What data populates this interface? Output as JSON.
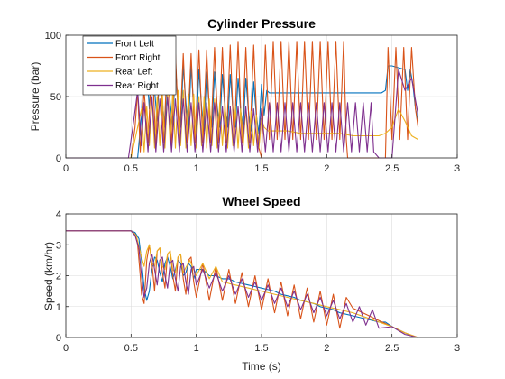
{
  "chart_data": [
    {
      "type": "line",
      "title": "Cylinder Pressure",
      "xlabel": "",
      "ylabel": "Pressure (bar)",
      "xlim": [
        0,
        3
      ],
      "ylim": [
        0,
        100
      ],
      "xticks": [
        "0",
        "0.5",
        "1",
        "1.5",
        "2",
        "2.5",
        "3"
      ],
      "yticks": [
        "0",
        "50",
        "100"
      ],
      "grid": true,
      "legend_position": "top-left",
      "series": [
        {
          "name": "Front Left",
          "color": "#0072BD",
          "x": [
            0,
            0.55,
            0.58,
            0.6,
            0.62,
            0.64,
            0.66,
            0.68,
            0.7,
            0.72,
            0.74,
            0.76,
            0.78,
            0.8,
            0.82,
            0.84,
            0.86,
            0.88,
            0.9,
            0.92,
            0.94,
            0.96,
            0.98,
            1.0,
            1.02,
            1.04,
            1.06,
            1.08,
            1.1,
            1.12,
            1.14,
            1.16,
            1.18,
            1.2,
            1.22,
            1.24,
            1.26,
            1.28,
            1.3,
            1.32,
            1.34,
            1.36,
            1.38,
            1.4,
            1.42,
            1.44,
            1.46,
            1.48,
            1.5,
            1.52,
            1.54,
            1.56,
            1.58,
            1.6,
            2.4,
            2.42,
            2.45,
            2.47,
            2.5,
            2.6,
            2.62,
            2.64,
            2.66,
            2.68,
            2.7
          ],
          "y": [
            0,
            0,
            35,
            98,
            72,
            40,
            80,
            55,
            30,
            75,
            45,
            25,
            80,
            45,
            25,
            78,
            40,
            25,
            75,
            45,
            22,
            75,
            40,
            20,
            72,
            42,
            22,
            70,
            40,
            25,
            70,
            42,
            25,
            68,
            40,
            25,
            68,
            40,
            25,
            65,
            38,
            25,
            65,
            38,
            22,
            62,
            35,
            20,
            60,
            35,
            55,
            53,
            53,
            53,
            53,
            53,
            55,
            75,
            75,
            72,
            55,
            72,
            60,
            40,
            30
          ]
        },
        {
          "name": "Front Right",
          "color": "#D95319",
          "x": [
            0,
            0.5,
            0.53,
            0.55,
            0.57,
            0.6,
            0.63,
            0.66,
            0.69,
            0.72,
            0.75,
            0.78,
            0.81,
            0.84,
            0.87,
            0.9,
            0.93,
            0.96,
            0.99,
            1.02,
            1.05,
            1.08,
            1.11,
            1.14,
            1.17,
            1.2,
            1.23,
            1.26,
            1.29,
            1.32,
            1.35,
            1.38,
            1.41,
            1.44,
            1.47,
            1.5,
            1.53,
            1.56,
            1.59,
            1.62,
            1.65,
            1.68,
            1.71,
            1.74,
            1.77,
            1.8,
            1.83,
            1.86,
            1.89,
            1.92,
            1.95,
            1.98,
            2.01,
            2.04,
            2.07,
            2.1,
            2.13,
            2.15,
            2.16,
            2.45,
            2.47,
            2.5,
            2.53,
            2.56,
            2.59,
            2.62,
            2.65,
            2.68,
            2.7
          ],
          "y": [
            0,
            0,
            25,
            55,
            5,
            55,
            12,
            82,
            10,
            82,
            12,
            85,
            10,
            85,
            12,
            85,
            12,
            85,
            12,
            88,
            12,
            88,
            12,
            90,
            12,
            90,
            12,
            92,
            12,
            95,
            12,
            90,
            12,
            92,
            12,
            0,
            92,
            15,
            95,
            15,
            95,
            15,
            95,
            15,
            95,
            15,
            95,
            15,
            95,
            15,
            95,
            15,
            95,
            15,
            95,
            15,
            95,
            15,
            0,
            0,
            90,
            15,
            90,
            15,
            90,
            15,
            90,
            40,
            25
          ]
        },
        {
          "name": "Rear Left",
          "color": "#EDB120",
          "x": [
            0,
            0.5,
            0.55,
            0.58,
            0.6,
            0.62,
            0.64,
            0.66,
            0.68,
            0.7,
            0.72,
            0.74,
            0.76,
            0.78,
            0.8,
            0.82,
            0.84,
            0.86,
            0.88,
            0.9,
            0.92,
            0.94,
            0.96,
            0.98,
            1.0,
            1.02,
            1.04,
            1.06,
            1.08,
            1.1,
            1.12,
            1.14,
            1.16,
            1.18,
            1.2,
            1.22,
            1.24,
            1.26,
            1.28,
            1.3,
            1.32,
            1.34,
            1.36,
            1.38,
            1.4,
            1.42,
            1.44,
            1.46,
            1.48,
            1.5,
            1.52,
            1.55,
            1.6,
            1.7,
            1.8,
            1.9,
            2.0,
            2.1,
            2.2,
            2.3,
            2.4,
            2.45,
            2.5,
            2.55,
            2.6,
            2.65,
            2.7
          ],
          "y": [
            0,
            0,
            25,
            40,
            5,
            42,
            10,
            48,
            8,
            50,
            10,
            52,
            8,
            55,
            10,
            55,
            8,
            55,
            10,
            55,
            8,
            52,
            10,
            52,
            8,
            50,
            10,
            50,
            8,
            48,
            10,
            48,
            8,
            45,
            10,
            45,
            8,
            42,
            10,
            42,
            8,
            40,
            10,
            40,
            8,
            38,
            10,
            35,
            8,
            32,
            25,
            22,
            22,
            22,
            20,
            20,
            20,
            20,
            18,
            18,
            18,
            20,
            25,
            40,
            30,
            18,
            15
          ]
        },
        {
          "name": "Rear Right",
          "color": "#7E2F8E",
          "x": [
            0,
            0.48,
            0.52,
            0.55,
            0.58,
            0.6,
            0.63,
            0.66,
            0.69,
            0.72,
            0.75,
            0.78,
            0.81,
            0.84,
            0.87,
            0.9,
            0.93,
            0.96,
            0.99,
            1.02,
            1.05,
            1.08,
            1.11,
            1.14,
            1.17,
            1.2,
            1.23,
            1.26,
            1.29,
            1.32,
            1.35,
            1.38,
            1.41,
            1.44,
            1.47,
            1.5,
            1.53,
            1.56,
            1.59,
            1.62,
            1.65,
            1.68,
            1.71,
            1.74,
            1.77,
            1.8,
            1.83,
            1.86,
            1.89,
            1.92,
            1.95,
            1.98,
            2.01,
            2.04,
            2.07,
            2.1,
            2.13,
            2.16,
            2.19,
            2.22,
            2.25,
            2.28,
            2.31,
            2.34,
            2.36,
            2.4,
            2.45,
            2.5,
            2.55,
            2.6,
            2.65,
            2.7
          ],
          "y": [
            0,
            0,
            30,
            55,
            10,
            45,
            5,
            50,
            5,
            48,
            5,
            50,
            5,
            48,
            5,
            48,
            5,
            45,
            5,
            45,
            5,
            45,
            5,
            45,
            5,
            42,
            5,
            42,
            5,
            42,
            5,
            42,
            5,
            40,
            5,
            40,
            5,
            45,
            5,
            45,
            5,
            45,
            5,
            45,
            5,
            45,
            5,
            45,
            5,
            45,
            5,
            45,
            5,
            45,
            5,
            45,
            5,
            45,
            5,
            45,
            5,
            45,
            5,
            45,
            5,
            0,
            0,
            0,
            72,
            55,
            65,
            35
          ]
        }
      ]
    },
    {
      "type": "line",
      "title": "Wheel Speed",
      "xlabel": "Time (s)",
      "ylabel": "Speed (km/hr)",
      "xlim": [
        0,
        3
      ],
      "ylim": [
        0,
        4
      ],
      "xticks": [
        "0",
        "0.5",
        "1",
        "1.5",
        "2",
        "2.5",
        "3"
      ],
      "yticks": [
        "0",
        "1",
        "2",
        "3",
        "4"
      ],
      "grid": true,
      "series": [
        {
          "name": "Front Left",
          "color": "#0072BD",
          "x": [
            0,
            0.5,
            0.53,
            0.56,
            0.58,
            0.6,
            0.62,
            0.64,
            0.66,
            0.68,
            0.7,
            0.72,
            0.74,
            0.76,
            0.78,
            0.8,
            0.82,
            0.84,
            0.86,
            0.88,
            0.9,
            0.92,
            0.94,
            0.96,
            0.98,
            1.0,
            1.05,
            1.1,
            1.15,
            1.2,
            1.25,
            1.3,
            1.35,
            1.4,
            1.45,
            1.5,
            1.55,
            1.6,
            1.65,
            1.7,
            1.75,
            1.8,
            1.85,
            1.9,
            1.95,
            2.0,
            2.05,
            2.1,
            2.2,
            2.3,
            2.4,
            2.45,
            2.5,
            2.55,
            2.6,
            2.65,
            2.7
          ],
          "y": [
            3.45,
            3.45,
            3.4,
            3.2,
            2.5,
            1.6,
            1.2,
            1.5,
            2.2,
            2.6,
            2.5,
            2.1,
            1.8,
            2.4,
            2.6,
            2.3,
            1.9,
            2.2,
            2.5,
            2.4,
            2.0,
            2.1,
            2.4,
            2.3,
            1.9,
            2.2,
            2.2,
            2.0,
            2.0,
            1.9,
            1.9,
            1.8,
            1.75,
            1.7,
            1.65,
            1.6,
            1.55,
            1.5,
            1.4,
            1.35,
            1.3,
            1.2,
            1.15,
            1.1,
            1.0,
            0.95,
            0.9,
            0.8,
            0.7,
            0.6,
            0.5,
            0.5,
            0.35,
            0.25,
            0.15,
            0.05,
            0
          ]
        },
        {
          "name": "Front Right",
          "color": "#D95319",
          "x": [
            0,
            0.5,
            0.53,
            0.55,
            0.57,
            0.58,
            0.6,
            0.62,
            0.64,
            0.66,
            0.68,
            0.7,
            0.72,
            0.74,
            0.76,
            0.78,
            0.8,
            0.82,
            0.84,
            0.86,
            0.88,
            0.9,
            0.92,
            0.94,
            0.96,
            0.98,
            1.0,
            1.05,
            1.1,
            1.15,
            1.2,
            1.25,
            1.3,
            1.35,
            1.4,
            1.45,
            1.5,
            1.55,
            1.6,
            1.65,
            1.7,
            1.75,
            1.8,
            1.85,
            1.9,
            1.95,
            2.0,
            2.05,
            2.1,
            2.15,
            2.2,
            2.3,
            2.4,
            2.5,
            2.6,
            2.7
          ],
          "y": [
            3.45,
            3.45,
            3.35,
            3.0,
            2.0,
            1.4,
            1.1,
            2.5,
            3.0,
            2.4,
            1.5,
            2.8,
            2.9,
            2.1,
            1.6,
            2.7,
            2.8,
            2.0,
            1.5,
            2.6,
            2.7,
            1.9,
            1.4,
            2.5,
            2.6,
            1.8,
            1.3,
            2.4,
            1.2,
            2.3,
            1.2,
            2.2,
            1.1,
            2.1,
            1.0,
            2.0,
            0.9,
            1.9,
            0.8,
            1.8,
            0.7,
            1.7,
            0.6,
            1.6,
            0.5,
            1.5,
            0.4,
            1.4,
            0.3,
            1.3,
            0.95,
            0.75,
            0.55,
            0.35,
            0.15,
            0
          ]
        },
        {
          "name": "Rear Left",
          "color": "#EDB120",
          "x": [
            0,
            0.5,
            0.54,
            0.58,
            0.6,
            0.62,
            0.64,
            0.66,
            0.68,
            0.7,
            0.72,
            0.74,
            0.76,
            0.78,
            0.8,
            0.82,
            0.84,
            0.86,
            0.88,
            0.9,
            0.95,
            1.0,
            1.05,
            1.1,
            1.15,
            1.2,
            1.3,
            1.4,
            1.5,
            1.6,
            1.7,
            1.8,
            1.9,
            2.0,
            2.1,
            2.2,
            2.3,
            2.4,
            2.5,
            2.6,
            2.7
          ],
          "y": [
            3.45,
            3.45,
            3.3,
            2.6,
            2.3,
            2.8,
            3.0,
            2.4,
            2.3,
            2.8,
            2.9,
            2.3,
            2.2,
            2.7,
            2.8,
            2.2,
            2.1,
            2.6,
            2.7,
            2.1,
            2.5,
            2.0,
            2.4,
            1.9,
            2.3,
            1.8,
            1.7,
            1.6,
            1.5,
            1.4,
            1.3,
            1.2,
            1.1,
            1.0,
            0.9,
            0.8,
            0.65,
            0.5,
            0.35,
            0.15,
            0
          ]
        },
        {
          "name": "Rear Right",
          "color": "#7E2F8E",
          "x": [
            0,
            0.5,
            0.53,
            0.56,
            0.58,
            0.6,
            0.62,
            0.64,
            0.66,
            0.68,
            0.7,
            0.72,
            0.74,
            0.76,
            0.78,
            0.8,
            0.82,
            0.84,
            0.86,
            0.88,
            0.9,
            0.92,
            0.94,
            0.96,
            0.98,
            1.0,
            1.05,
            1.1,
            1.15,
            1.2,
            1.25,
            1.3,
            1.35,
            1.4,
            1.45,
            1.5,
            1.55,
            1.6,
            1.65,
            1.7,
            1.75,
            1.8,
            1.85,
            1.9,
            1.95,
            2.0,
            2.05,
            2.1,
            2.15,
            2.2,
            2.25,
            2.3,
            2.35,
            2.4,
            2.5,
            2.6,
            2.7
          ],
          "y": [
            3.45,
            3.45,
            3.3,
            2.9,
            2.0,
            1.3,
            1.6,
            2.4,
            2.7,
            2.2,
            1.7,
            2.5,
            2.6,
            2.0,
            1.6,
            2.4,
            2.5,
            1.9,
            1.5,
            2.3,
            2.4,
            1.8,
            1.4,
            2.2,
            2.3,
            1.7,
            2.2,
            1.6,
            2.1,
            1.5,
            2.0,
            1.4,
            1.9,
            1.3,
            1.8,
            1.2,
            1.7,
            1.1,
            1.6,
            1.0,
            1.5,
            0.9,
            1.4,
            0.8,
            1.3,
            0.7,
            1.2,
            0.6,
            1.1,
            0.5,
            1.0,
            0.4,
            0.9,
            0.3,
            0.35,
            0.1,
            0
          ]
        }
      ]
    }
  ]
}
